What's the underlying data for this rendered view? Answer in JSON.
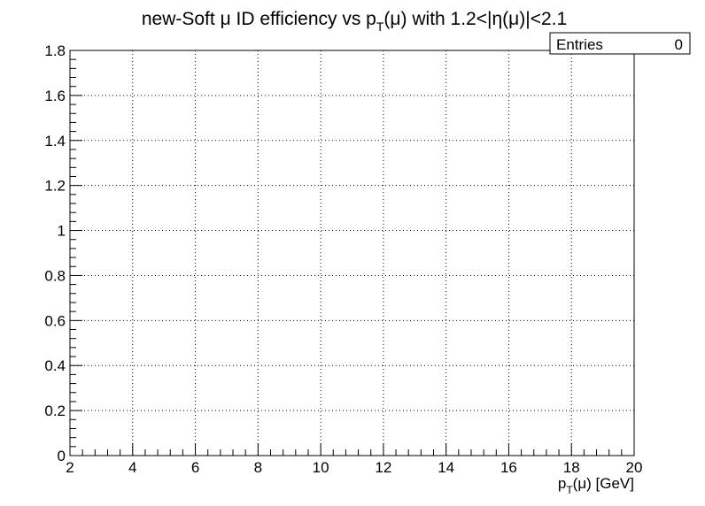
{
  "chart_data": {
    "type": "line",
    "title_parts": {
      "a": "new-Soft ",
      "mu": "μ",
      "b": " ID efficiency vs p",
      "sub": "T",
      "c": "(",
      "mu2": "μ",
      "d": ") with 1.2<|",
      "eta": "η",
      "e": "(",
      "mu3": "μ",
      "f": ")|<2.1"
    },
    "xlabel_parts": {
      "a": "p",
      "sub": "T",
      "b": "(",
      "mu": "μ",
      "c": ") [GeV]"
    },
    "ylabel": "",
    "xlim": [
      2,
      20
    ],
    "ylim": [
      0,
      1.8
    ],
    "x_ticks": [
      2,
      4,
      6,
      8,
      10,
      12,
      14,
      16,
      18,
      20
    ],
    "x_tick_labels": [
      "2",
      "4",
      "6",
      "8",
      "10",
      "12",
      "14",
      "16",
      "18",
      "20"
    ],
    "y_ticks": [
      0,
      0.2,
      0.4,
      0.6,
      0.8,
      1.0,
      1.2,
      1.4,
      1.6,
      1.8
    ],
    "y_tick_labels": [
      "0",
      "0.2",
      "0.4",
      "0.6",
      "0.8",
      "1",
      "1.2",
      "1.4",
      "1.6",
      "1.8"
    ],
    "grid": true,
    "series": [],
    "stats_box": {
      "label": "Entries",
      "value": "0",
      "placement": "top-right"
    }
  }
}
